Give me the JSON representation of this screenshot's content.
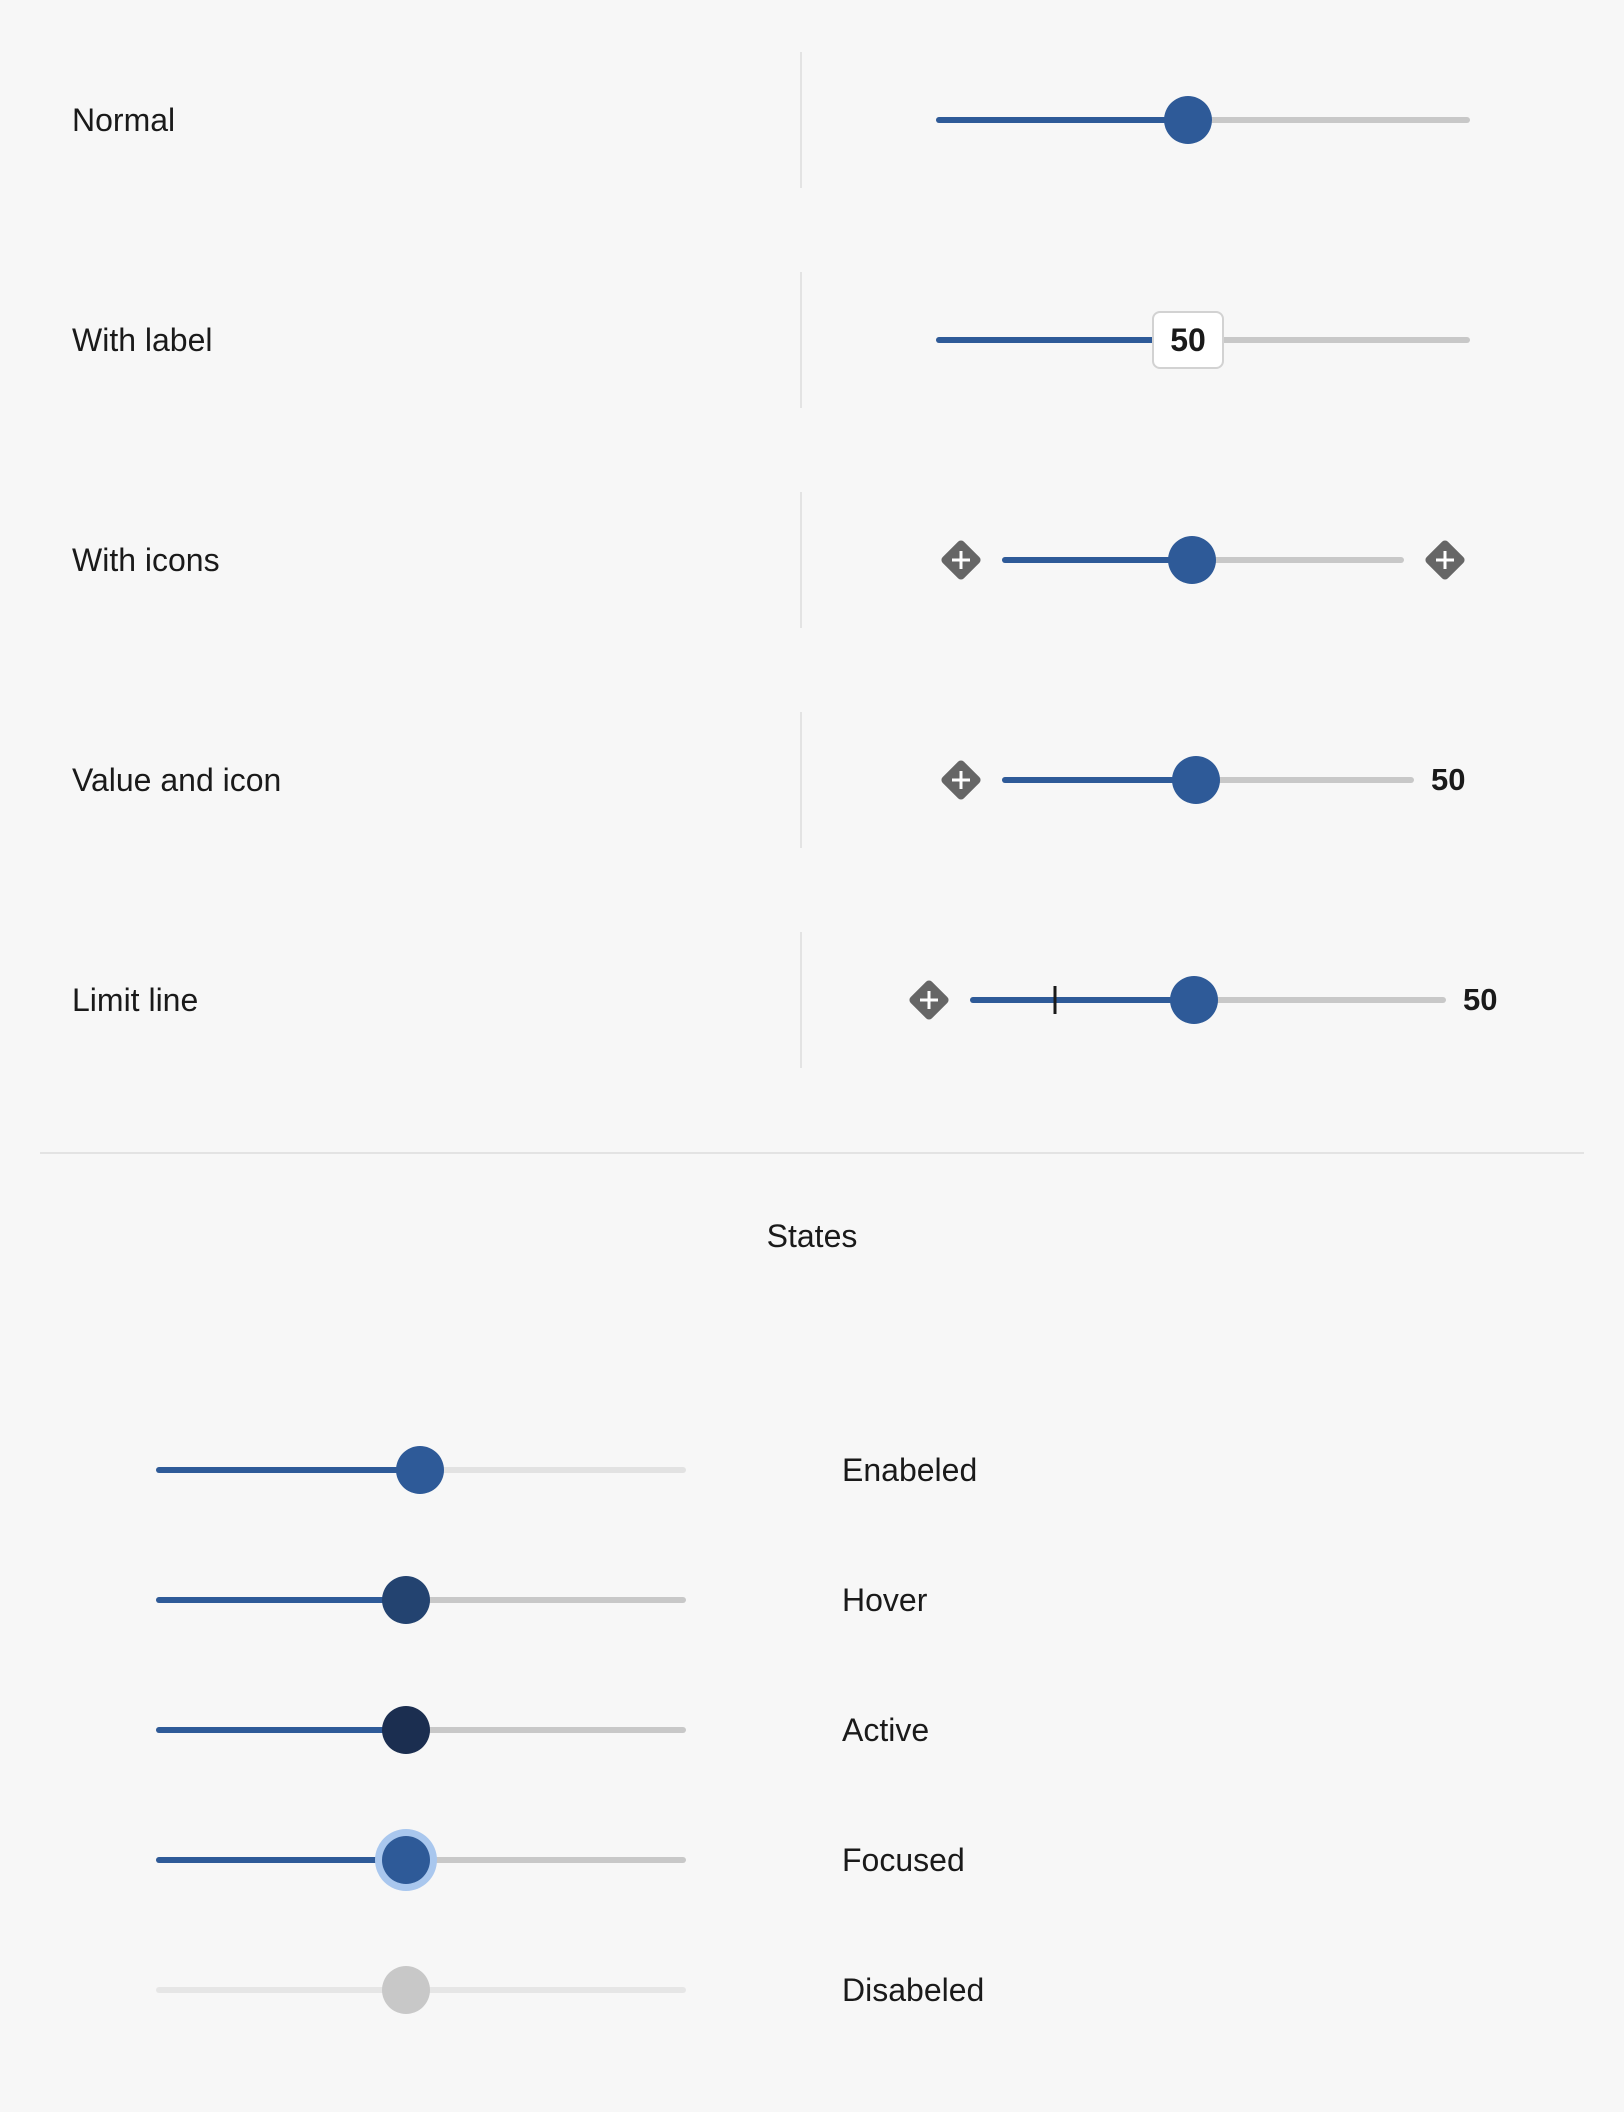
{
  "variants": [
    {
      "label": "Normal"
    },
    {
      "label": "With label",
      "thumb_value": "50"
    },
    {
      "label": "With icons"
    },
    {
      "label": "Value and icon",
      "value": "50"
    },
    {
      "label": "Limit line",
      "value": "50"
    }
  ],
  "states_title": "States",
  "states": [
    {
      "label": "Enabeled"
    },
    {
      "label": "Hover"
    },
    {
      "label": "Active"
    },
    {
      "label": "Focused"
    },
    {
      "label": "Disabeled"
    }
  ],
  "colors": {
    "accent": "#2e5a98",
    "hover": "#234370",
    "active": "#1b2e50",
    "focus_ring": "#a9c7ee",
    "track": "#c8c8c8",
    "disabled": "#c8c8c8",
    "icon": "#666666"
  },
  "icons": {
    "start": "diamond-plus-icon",
    "end": "diamond-plus-icon"
  }
}
